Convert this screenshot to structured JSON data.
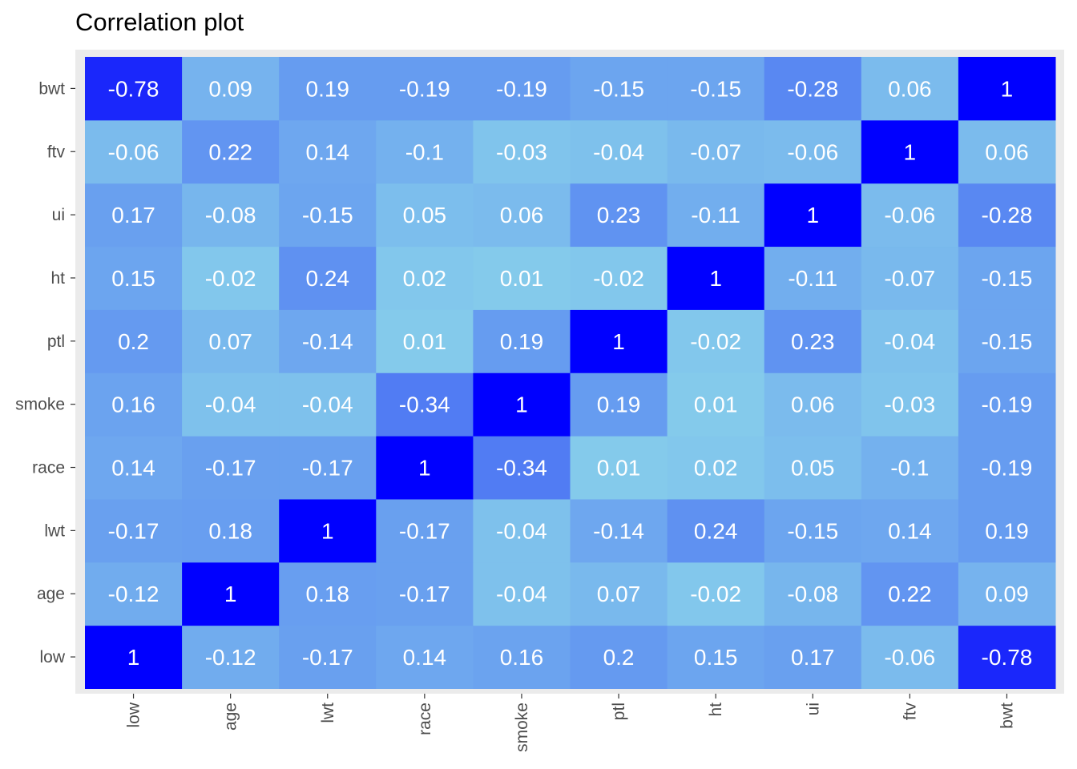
{
  "chart_data": {
    "type": "heatmap",
    "title": "Correlation plot",
    "x_categories": [
      "low",
      "age",
      "lwt",
      "race",
      "smoke",
      "ptl",
      "ht",
      "ui",
      "ftv",
      "bwt"
    ],
    "y_categories": [
      "low",
      "age",
      "lwt",
      "race",
      "smoke",
      "ptl",
      "ht",
      "ui",
      "ftv",
      "bwt"
    ],
    "matrix": [
      [
        1,
        -0.12,
        -0.17,
        0.14,
        0.16,
        0.2,
        0.15,
        0.17,
        -0.06,
        -0.78
      ],
      [
        -0.12,
        1,
        0.18,
        -0.17,
        -0.04,
        0.07,
        -0.02,
        -0.08,
        0.22,
        0.09
      ],
      [
        -0.17,
        0.18,
        1,
        -0.17,
        -0.04,
        -0.14,
        0.24,
        -0.15,
        0.14,
        0.19
      ],
      [
        0.14,
        -0.17,
        -0.17,
        1,
        -0.34,
        0.01,
        0.02,
        0.05,
        -0.1,
        -0.19
      ],
      [
        0.16,
        -0.04,
        -0.04,
        -0.34,
        1,
        0.19,
        0.01,
        0.06,
        -0.03,
        -0.19
      ],
      [
        0.2,
        0.07,
        -0.14,
        0.01,
        0.19,
        1,
        -0.02,
        0.23,
        -0.04,
        -0.15
      ],
      [
        0.15,
        -0.02,
        0.24,
        0.02,
        0.01,
        -0.02,
        1,
        -0.11,
        -0.07,
        -0.15
      ],
      [
        0.17,
        -0.08,
        -0.15,
        0.05,
        0.06,
        0.23,
        -0.11,
        1,
        -0.06,
        -0.28
      ],
      [
        -0.06,
        0.22,
        0.14,
        -0.1,
        -0.03,
        -0.04,
        -0.07,
        -0.06,
        1,
        0.06
      ],
      [
        -0.78,
        0.09,
        0.19,
        -0.19,
        -0.19,
        -0.15,
        -0.15,
        -0.28,
        0.06,
        1
      ]
    ],
    "color_scale": {
      "low": "#87ceeb",
      "high": "#0000ff",
      "measure": "absolute correlation"
    },
    "panel_background": "#ebebeb",
    "label_color": "#ffffff",
    "xlabel": "",
    "ylabel": "",
    "grid": false,
    "legend": "none"
  }
}
